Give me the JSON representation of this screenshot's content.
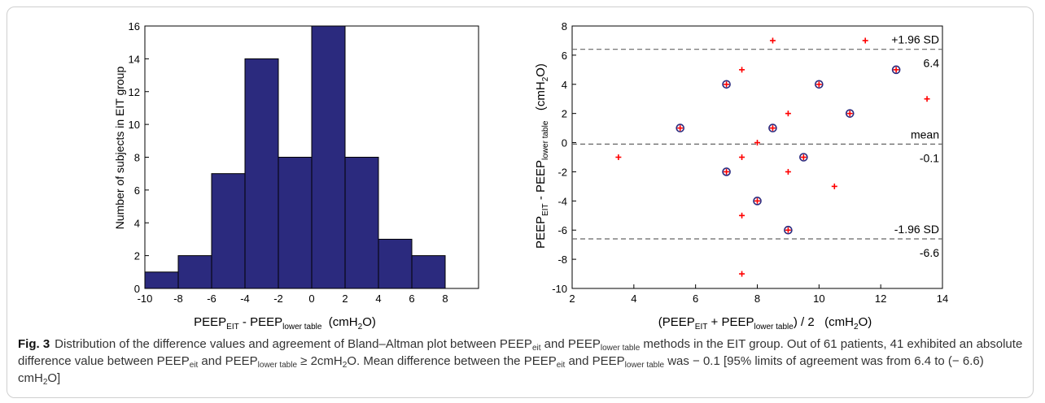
{
  "chart_data": [
    {
      "type": "bar",
      "bin_edges": [
        -10,
        -8,
        -6,
        -4,
        -2,
        0,
        2,
        4,
        6,
        8
      ],
      "values": [
        1,
        2,
        7,
        14,
        8,
        16,
        8,
        3,
        2
      ],
      "xlim": [
        -10,
        10
      ],
      "ylim": [
        0,
        16
      ],
      "xticks": [
        -10,
        -8,
        -6,
        -4,
        -2,
        0,
        2,
        4,
        6,
        8
      ],
      "yticks": [
        0,
        2,
        4,
        6,
        8,
        10,
        12,
        14,
        16
      ],
      "xlabel": {
        "main": "PEEP",
        "sub1": "EIT",
        "mid": " - PEEP",
        "sub2": "lower table",
        "unit": "  (cmH",
        "unit_sub": "2",
        "unit_end": "O)"
      },
      "ylabel": "Number of subjects in EIT group",
      "bar_color": "#2b2a7e"
    },
    {
      "type": "scatter",
      "xlim": [
        2,
        14
      ],
      "ylim": [
        -10,
        8
      ],
      "xticks": [
        2,
        4,
        6,
        8,
        10,
        12,
        14
      ],
      "yticks": [
        -10,
        -8,
        -6,
        -4,
        -2,
        0,
        2,
        4,
        6,
        8
      ],
      "points": [
        {
          "x": 3.5,
          "y": -1,
          "circled": false
        },
        {
          "x": 5.5,
          "y": 1,
          "circled": true
        },
        {
          "x": 7,
          "y": 4,
          "circled": true
        },
        {
          "x": 7,
          "y": -2,
          "circled": true
        },
        {
          "x": 7.5,
          "y": 5,
          "circled": false
        },
        {
          "x": 7.5,
          "y": -1,
          "circled": false
        },
        {
          "x": 7.5,
          "y": -5,
          "circled": false
        },
        {
          "x": 7.5,
          "y": -9,
          "circled": false
        },
        {
          "x": 8,
          "y": 0,
          "circled": false
        },
        {
          "x": 8,
          "y": -4,
          "circled": true
        },
        {
          "x": 8.5,
          "y": 7,
          "circled": false
        },
        {
          "x": 8.5,
          "y": 1,
          "circled": true
        },
        {
          "x": 9,
          "y": 2,
          "circled": false
        },
        {
          "x": 9,
          "y": -2,
          "circled": false
        },
        {
          "x": 9,
          "y": -6,
          "circled": true
        },
        {
          "x": 9.5,
          "y": -1,
          "circled": true
        },
        {
          "x": 10,
          "y": 4,
          "circled": true
        },
        {
          "x": 10.5,
          "y": -3,
          "circled": false
        },
        {
          "x": 11,
          "y": 2,
          "circled": true
        },
        {
          "x": 11.5,
          "y": 7,
          "circled": false
        },
        {
          "x": 12.5,
          "y": 5,
          "circled": true
        },
        {
          "x": 13.5,
          "y": 3,
          "circled": false
        }
      ],
      "reference_lines": [
        {
          "y": 6.4,
          "label": "+1.96 SD",
          "value_label": "6.4"
        },
        {
          "y": -0.1,
          "label": "mean",
          "value_label": "-0.1"
        },
        {
          "y": -6.6,
          "label": "-1.96 SD",
          "value_label": "-6.6"
        }
      ],
      "xlabel": {
        "open": "(PEEP",
        "sub1": "EIT",
        "mid": " + PEEP",
        "sub2": "lower table",
        "close": ") / 2   (cmH",
        "unit_sub": "2",
        "unit_end": "O)"
      },
      "ylabel": {
        "main": "PEEP",
        "sub1": "EIT",
        "mid": " - PEEP",
        "sub2": "lower table",
        "unit": "   (cmH",
        "unit_sub": "2",
        "unit_end": "O)"
      },
      "point_color": "#ff0000",
      "circle_color": "#2b2a7e"
    }
  ],
  "caption": {
    "label": "Fig. 3",
    "t1": "Distribution of the difference values and agreement of Bland–Altman plot between PEEP",
    "s1": "eit",
    "t2": " and PEEP",
    "s2": "lower table",
    "t3": " methods in the EIT group. Out of 61 patients, 41 exhibited an absolute difference value between PEEP",
    "s3": "eit",
    "t4": " and PEEP",
    "s4": "lower table",
    "t5": " ≥ 2cmH",
    "s5": "2",
    "t6": "O. Mean difference between the PEEP",
    "s6": "eit",
    "t7": " and PEEP",
    "s7": "lower table",
    "t8": " was − 0.1 [95% limits of agreement was from 6.4 to (− 6.6) cmH",
    "s8": "2",
    "t9": "O]"
  }
}
